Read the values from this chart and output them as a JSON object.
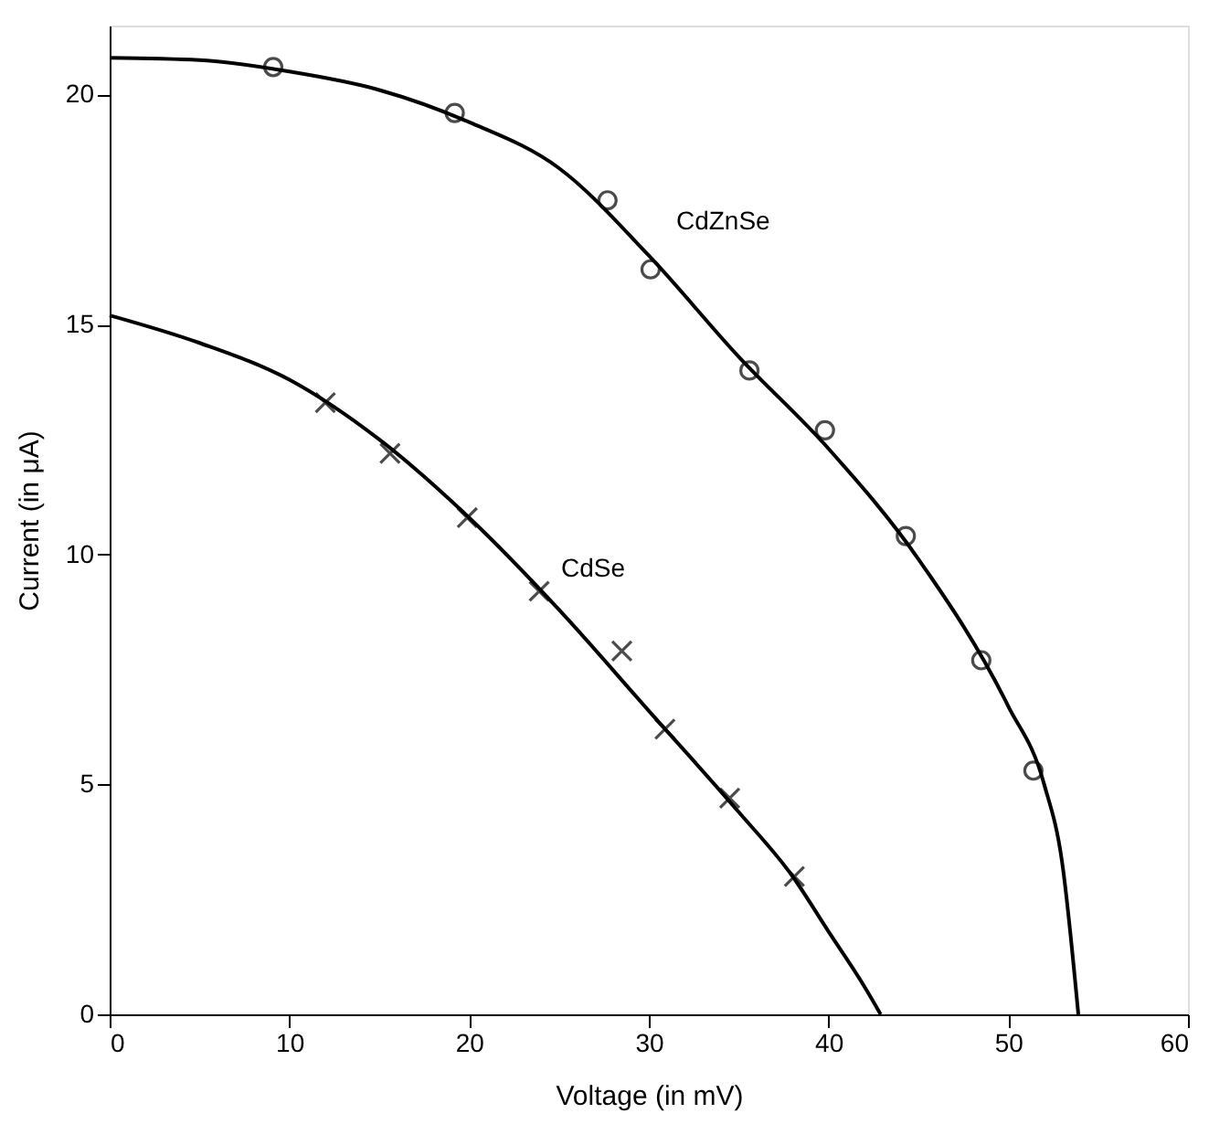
{
  "chart_data": {
    "type": "scatter",
    "xlabel": "Voltage (in mV)",
    "ylabel": "Current (in μA)",
    "xlim": [
      0,
      60
    ],
    "xticks": [
      0,
      10,
      20,
      30,
      40,
      50,
      60
    ],
    "ylim": [
      0,
      21.5
    ],
    "yticks": [
      0,
      5,
      10,
      15,
      20
    ],
    "grid": false,
    "series": [
      {
        "name": "CdZnSe",
        "marker": "circle",
        "color": "#000000",
        "x": [
          9.1,
          19.2,
          27.7,
          30.1,
          35.6,
          39.8,
          44.3,
          48.5,
          51.4
        ],
        "values": [
          20.6,
          19.6,
          17.7,
          16.2,
          14.0,
          12.7,
          10.4,
          7.7,
          5.3
        ]
      },
      {
        "type": "line",
        "line_style": "solid",
        "marker": "none",
        "color": "#000000",
        "x": [
          0,
          5,
          10,
          15,
          20,
          25,
          30,
          35,
          40,
          45,
          50,
          52,
          53,
          53.9
        ],
        "values": [
          20.8,
          20.75,
          20.5,
          20.1,
          19.4,
          18.4,
          16.5,
          14.3,
          12.3,
          9.9,
          6.7,
          5.0,
          3.3,
          0
        ]
      },
      {
        "name": "CdSe",
        "marker": "cross",
        "color": "#000000",
        "x": [
          12.0,
          15.6,
          19.9,
          23.9,
          28.5,
          30.9,
          34.5,
          38.1
        ],
        "values": [
          13.3,
          12.2,
          10.8,
          9.2,
          7.9,
          6.2,
          4.7,
          3.0
        ]
      },
      {
        "type": "line",
        "line_style": "solid",
        "marker": "none",
        "color": "#000000",
        "x": [
          0,
          5,
          10,
          15,
          20,
          25,
          30,
          35,
          38,
          40,
          42,
          42.9
        ],
        "values": [
          15.2,
          14.6,
          13.8,
          12.5,
          10.8,
          8.8,
          6.6,
          4.4,
          3.0,
          1.8,
          0.6,
          0
        ]
      }
    ]
  }
}
